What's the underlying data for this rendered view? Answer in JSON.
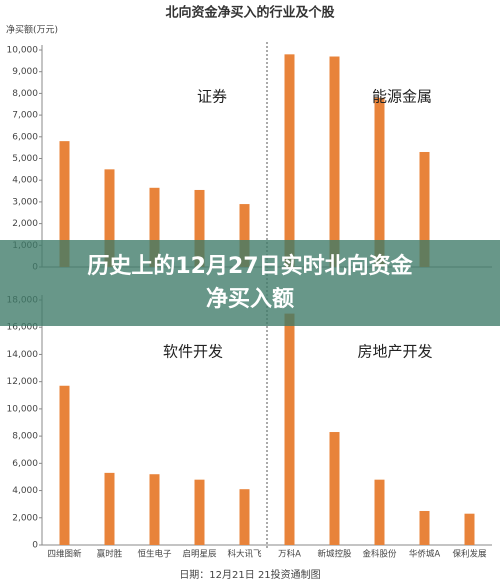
{
  "chart_data": [
    {
      "type": "bar",
      "title": "北向资金净买入的行业及个股",
      "ylabel": "净买额(万元)",
      "categories": [
        null,
        null,
        null,
        null,
        null,
        null,
        null,
        null,
        null
      ],
      "values": [
        5800,
        4500,
        3650,
        3550,
        2900,
        9800,
        9700,
        7800,
        5300
      ],
      "color": "#e8833a",
      "ylim": [
        0,
        10000
      ],
      "yticks": [
        0,
        {
          "value": 1000,
          "label": "1,000"
        },
        {
          "value": 2000,
          "label": "2,000"
        },
        {
          "value": 3000,
          "label": "3,000"
        },
        {
          "value": 4000,
          "label": "4,000"
        },
        {
          "value": 5000,
          "label": "5,000"
        },
        {
          "value": 6000,
          "label": "6,000"
        },
        {
          "value": 7000,
          "label": "7,000"
        },
        {
          "value": 8000,
          "label": "8,000"
        },
        {
          "value": 9000,
          "label": "9,000"
        },
        {
          "value": 10000,
          "label": "10,000"
        }
      ],
      "grid": false,
      "annotations": [
        "证券",
        "能源金属"
      ]
    },
    {
      "type": "bar",
      "xlabel": "日期：12月21日 21投资通制图",
      "categories": [
        "四维图新",
        "赢时胜",
        "恒生电子",
        "启明星辰",
        "科大讯飞",
        "万科A",
        "新城控股",
        "金科股份",
        "华侨城A",
        "保利发展"
      ],
      "values": [
        11700,
        5300,
        5200,
        4800,
        4100,
        17000,
        8300,
        4800,
        2500,
        2300
      ],
      "color": "#e8833a",
      "ylim": [
        0,
        18000
      ],
      "yticks": [
        0,
        {
          "value": 2000,
          "label": "2,000"
        },
        {
          "value": 4000,
          "label": "4,000"
        },
        {
          "value": 6000,
          "label": "6,000"
        },
        {
          "value": 8000,
          "label": "8,000"
        },
        {
          "value": 10000,
          "label": "10,000"
        },
        {
          "value": 12000,
          "label": "12,000"
        },
        {
          "value": 14000,
          "label": "14,000"
        },
        {
          "value": 16000,
          "label": "16,000"
        },
        {
          "value": 18000,
          "label": "18,000"
        }
      ],
      "grid": false,
      "annotations": [
        "软件开发",
        "房地产开发"
      ]
    }
  ],
  "banner": {
    "lines": [
      "历史上的12月27日实时北向资金",
      "净买入额"
    ]
  }
}
